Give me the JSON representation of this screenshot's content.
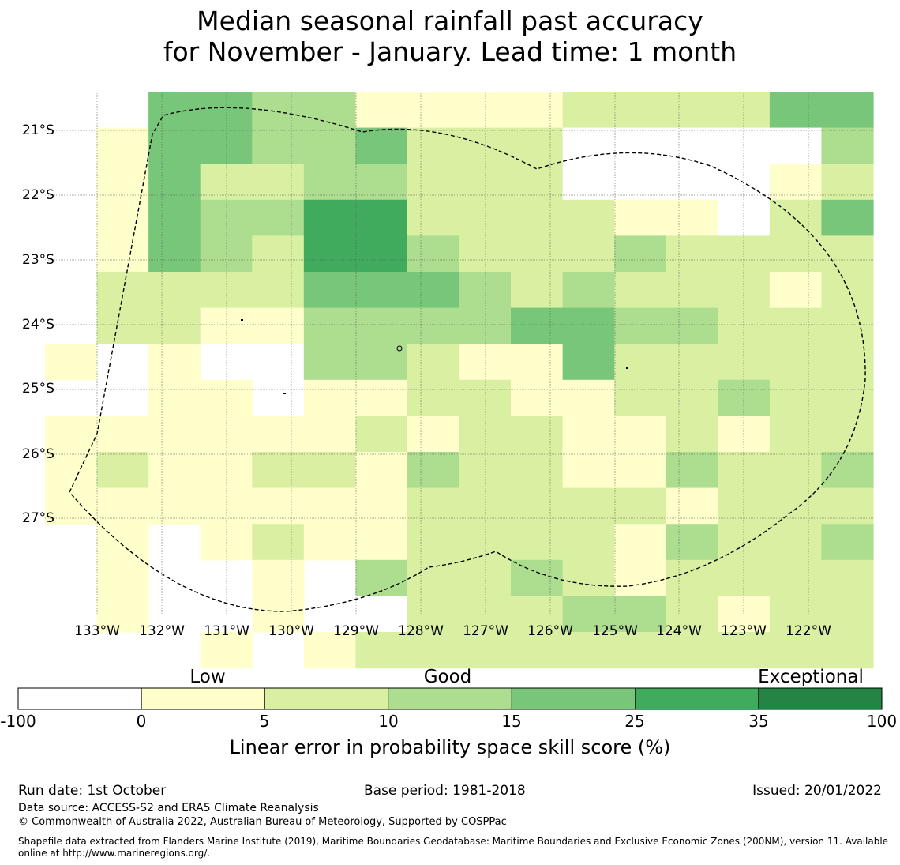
{
  "title": {
    "line1": "Median seasonal rainfall past accuracy",
    "line2": "for November - January. Lead time: 1 month"
  },
  "map": {
    "lat_labels": [
      "21°S",
      "22°S",
      "23°S",
      "24°S",
      "25°S",
      "26°S",
      "27°S"
    ],
    "lon_labels": [
      "133°W",
      "132°W",
      "131°W",
      "130°W",
      "129°W",
      "128°W",
      "127°W",
      "126°W",
      "125°W",
      "124°W",
      "123°W",
      "122°W"
    ],
    "grid_class_rows": [
      "44331111222244",
      "144334222000003",
      "142233222000012",
      "143355222211024",
      "143255322232222",
      "222244432322212",
      "221133334433222",
      "1-1--33211422222",
      "-11-11221122322",
      "1111112122112122",
      "1211221322113223",
      "1111111222221222",
      "-1-1211222213223",
      "1--1-3223212222",
      "1--1--222332122",
      "-1-12222222222"
    ],
    "eez_name": "EEZ boundary (dashed)"
  },
  "colorbar": {
    "category_labels": [
      "Low",
      "Good",
      "Exceptional"
    ],
    "tick_labels": [
      "-100",
      "0",
      "5",
      "10",
      "15",
      "25",
      "35",
      "100"
    ],
    "title": "Linear error in probability space skill score (%)",
    "bin_colors": [
      "#ffffff",
      "#ffffcc",
      "#d9f0a3",
      "#addd8e",
      "#78c679",
      "#41ab5d",
      "#238443"
    ]
  },
  "footer": {
    "run_date": "Run date: 1st October",
    "base_period": "Base period: 1981-2018",
    "issued": "Issued: 20/01/2022",
    "data_source": "Data source: ACCESS-S2 and ERA5 Climate Reanalysis",
    "copyright": "© Commonwealth of Australia 2022, Australian Bureau of Meteorology, Supported by COSPPac",
    "shapefile_line1": "Shapefile data extracted from Flanders Marine Institute (2019), Maritime Boundaries Geodatabase: Maritime Boundaries and Exclusive Economic Zones (200NM), version 11. Available",
    "shapefile_line2": "online at http://www.marineregions.org/."
  }
}
